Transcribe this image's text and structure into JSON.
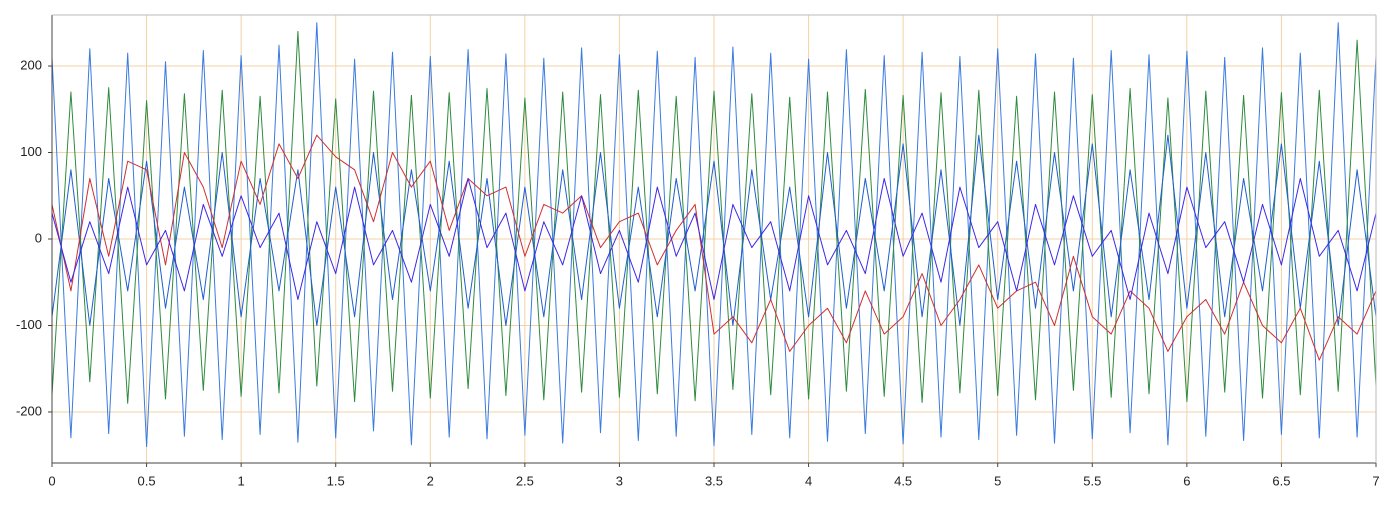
{
  "chart_data": {
    "type": "line",
    "xlim": [
      0,
      7
    ],
    "xticks": [
      0,
      0.5,
      1,
      1.5,
      2,
      2.5,
      3,
      3.5,
      4,
      4.5,
      5,
      5.5,
      6,
      6.5,
      7
    ],
    "ylim": [
      -259,
      259
    ],
    "yticks": [
      -200,
      -100,
      0,
      100,
      200
    ],
    "grid": true,
    "x": [
      0,
      0.1,
      0.2,
      0.3,
      0.4,
      0.5,
      0.6,
      0.7,
      0.8,
      0.9,
      1,
      1.1,
      1.2,
      1.3,
      1.4,
      1.5,
      1.6,
      1.7,
      1.8,
      1.9,
      2,
      2.1,
      2.2,
      2.3,
      2.4,
      2.5,
      2.6,
      2.7,
      2.8,
      2.9,
      3,
      3.1,
      3.2,
      3.3,
      3.4,
      3.5,
      3.6,
      3.7,
      3.8,
      3.9,
      4,
      4.1,
      4.2,
      4.3,
      4.4,
      4.5,
      4.6,
      4.7,
      4.8,
      4.9,
      5,
      5.1,
      5.2,
      5.3,
      5.4,
      5.5,
      5.6,
      5.7,
      5.8,
      5.9,
      6,
      6.1,
      6.2,
      6.3,
      6.4,
      6.5,
      6.6,
      6.7,
      6.8,
      6.9,
      7
    ],
    "series": [
      {
        "color": "#3a7be0",
        "values": [
          210,
          -230,
          220,
          -225,
          215,
          -240,
          205,
          -228,
          218,
          -232,
          212,
          -226,
          224,
          -235,
          250,
          -230,
          208,
          -222,
          216,
          -238,
          211,
          -229,
          219,
          -231,
          214,
          -227,
          209,
          -236,
          221,
          -224,
          213,
          -233,
          217,
          -228,
          210,
          -239,
          222,
          -226,
          215,
          -230,
          208,
          -234,
          219,
          -225,
          212,
          -237,
          216,
          -229,
          211,
          -232,
          220,
          -227,
          214,
          -236,
          209,
          -231,
          218,
          -224,
          213,
          -238,
          217,
          -228,
          210,
          -233,
          221,
          -226,
          215,
          -230,
          250,
          -229,
          212
        ]
      },
      {
        "color": "#2e8b3e",
        "values": [
          -180,
          170,
          -165,
          175,
          -190,
          160,
          -185,
          168,
          -175,
          172,
          -182,
          165,
          -178,
          240,
          -170,
          162,
          -188,
          171,
          -176,
          166,
          -184,
          169,
          -173,
          174,
          -181,
          163,
          -186,
          170,
          -177,
          167,
          -183,
          172,
          -179,
          165,
          -187,
          171,
          -174,
          168,
          -180,
          164,
          -185,
          170,
          -176,
          173,
          -182,
          166,
          -189,
          169,
          -178,
          172,
          -181,
          165,
          -186,
          170,
          -175,
          167,
          -183,
          174,
          -179,
          163,
          -188,
          171,
          -177,
          166,
          -184,
          169,
          -180,
          172,
          -176,
          230,
          -170
        ]
      },
      {
        "color": "#1f5fd0",
        "values": [
          -90,
          80,
          -100,
          70,
          -60,
          90,
          -80,
          60,
          -70,
          100,
          -90,
          70,
          -60,
          80,
          -100,
          60,
          -90,
          100,
          -70,
          80,
          -60,
          90,
          -80,
          70,
          -100,
          60,
          -90,
          80,
          -70,
          100,
          -80,
          60,
          -90,
          70,
          -60,
          90,
          -100,
          80,
          -70,
          60,
          -90,
          100,
          -80,
          70,
          -60,
          110,
          -90,
          80,
          -100,
          120,
          -70,
          90,
          -80,
          100,
          -60,
          110,
          -90,
          80,
          -70,
          120,
          -80,
          100,
          -90,
          70,
          -60,
          110,
          -80,
          90,
          -100,
          80,
          -90
        ]
      },
      {
        "color": "#d03030",
        "values": [
          40,
          -60,
          70,
          -20,
          90,
          80,
          -30,
          100,
          60,
          -10,
          90,
          40,
          110,
          70,
          120,
          95,
          80,
          20,
          100,
          60,
          90,
          10,
          70,
          50,
          60,
          -20,
          40,
          30,
          50,
          -10,
          20,
          30,
          -30,
          10,
          40,
          -110,
          -90,
          -120,
          -70,
          -130,
          -100,
          -80,
          -120,
          -60,
          -110,
          -90,
          -40,
          -100,
          -70,
          -30,
          -80,
          -60,
          -50,
          -100,
          -20,
          -90,
          -110,
          -60,
          -80,
          -130,
          -90,
          -70,
          -110,
          -50,
          -100,
          -120,
          -80,
          -140,
          -90,
          -110,
          -60
        ]
      },
      {
        "color": "#3c28e8",
        "values": [
          30,
          -50,
          20,
          -40,
          60,
          -30,
          10,
          -60,
          40,
          -20,
          50,
          -10,
          30,
          -70,
          20,
          -40,
          60,
          -30,
          10,
          -50,
          40,
          -20,
          70,
          -10,
          30,
          -60,
          20,
          -30,
          50,
          -40,
          10,
          -50,
          60,
          -20,
          30,
          -70,
          40,
          -10,
          20,
          -60,
          50,
          -30,
          10,
          -40,
          70,
          -20,
          30,
          -50,
          60,
          -10,
          20,
          -60,
          40,
          -30,
          50,
          -20,
          10,
          -70,
          30,
          -40,
          60,
          -10,
          20,
          -50,
          40,
          -30,
          70,
          -20,
          10,
          -60,
          30
        ]
      }
    ]
  }
}
